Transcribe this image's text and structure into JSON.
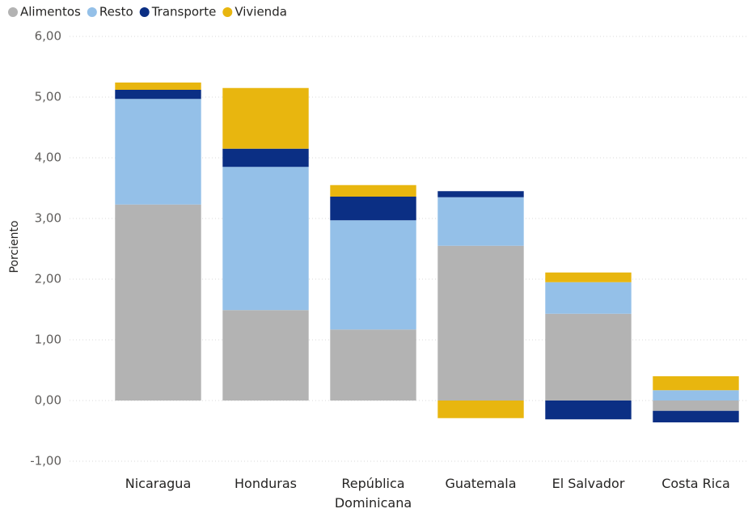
{
  "chart_data": {
    "type": "stacked_bar",
    "y_label": "Porciento",
    "categories": [
      "Nicaragua",
      "Honduras",
      "República Dominicana",
      "Guatemala",
      "El Salvador",
      "Costa Rica"
    ],
    "series": [
      {
        "name": "Alimentos",
        "color": "#b3b3b3",
        "values": [
          3.23,
          1.49,
          1.17,
          2.55,
          1.43,
          -0.17
        ]
      },
      {
        "name": "Resto",
        "color": "#94c0e8",
        "values": [
          1.74,
          2.36,
          1.8,
          0.8,
          0.52,
          0.17
        ]
      },
      {
        "name": "Transporte",
        "color": "#0b2f84",
        "values": [
          0.15,
          0.3,
          0.39,
          0.1,
          -0.31,
          -0.19
        ]
      },
      {
        "name": "Vivienda",
        "color": "#e8b60f",
        "values": [
          0.12,
          1.0,
          0.19,
          -0.29,
          0.16,
          0.23
        ]
      }
    ],
    "ylim": [
      -1,
      6
    ],
    "yticks": [
      {
        "value": -1,
        "label": "-1,00"
      },
      {
        "value": 0,
        "label": "0,00"
      },
      {
        "value": 1,
        "label": "1,00"
      },
      {
        "value": 2,
        "label": "2,00"
      },
      {
        "value": 3,
        "label": "3,00"
      },
      {
        "value": 4,
        "label": "4,00"
      },
      {
        "value": 5,
        "label": "5,00"
      },
      {
        "value": 6,
        "label": "6,00"
      }
    ],
    "grid": true
  }
}
